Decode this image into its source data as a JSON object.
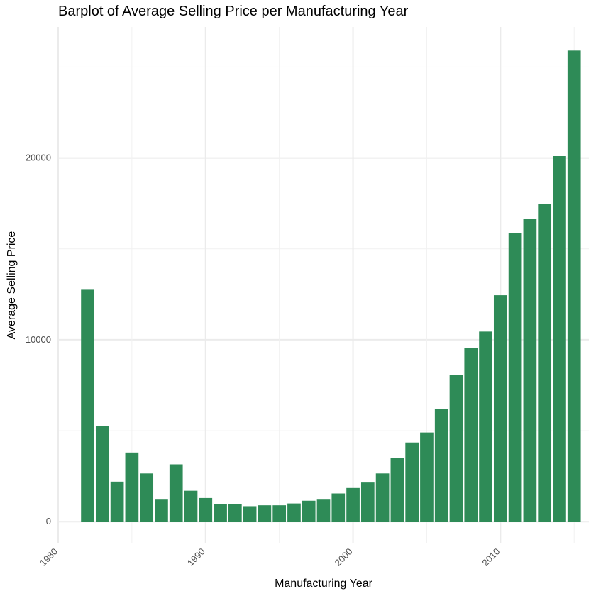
{
  "chart_data": {
    "type": "bar",
    "title": "Barplot of Average Selling Price per Manufacturing Year",
    "xlabel": "Manufacturing Year",
    "ylabel": "Average Selling Price",
    "x": [
      1982,
      1983,
      1984,
      1985,
      1986,
      1987,
      1988,
      1989,
      1990,
      1991,
      1992,
      1993,
      1994,
      1995,
      1996,
      1997,
      1998,
      1999,
      2000,
      2001,
      2002,
      2003,
      2004,
      2005,
      2006,
      2007,
      2008,
      2009,
      2010,
      2011,
      2012,
      2013,
      2014,
      2015
    ],
    "values": [
      12750,
      5250,
      2200,
      3800,
      2650,
      1250,
      3150,
      1700,
      1300,
      950,
      950,
      850,
      900,
      900,
      1000,
      1150,
      1250,
      1550,
      1850,
      2150,
      2650,
      3500,
      4350,
      4900,
      6200,
      8050,
      9550,
      10450,
      12450,
      15850,
      16650,
      17450,
      20100,
      25900
    ],
    "xticks": [
      "1980",
      "1990",
      "2000",
      "2010"
    ],
    "yticks": [
      "0",
      "10000",
      "20000"
    ],
    "xlim": [
      1980,
      2016
    ],
    "ylim": [
      -1200,
      27200
    ],
    "grid": true,
    "bar_color": "#2e8b57"
  }
}
